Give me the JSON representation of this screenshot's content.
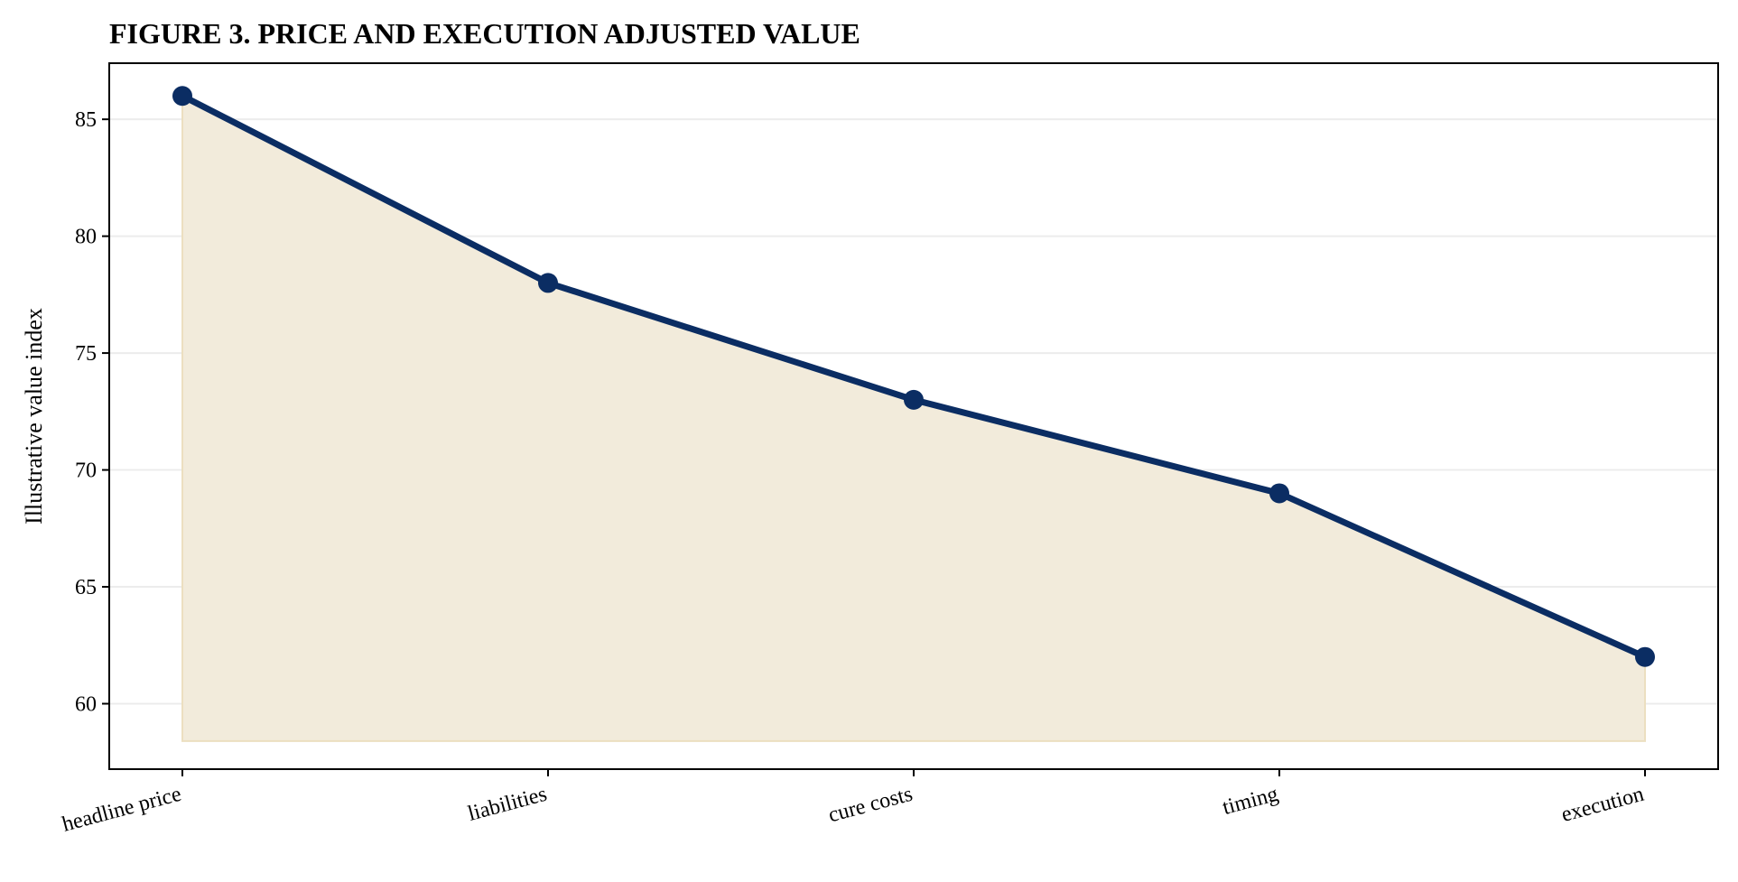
{
  "chart_data": {
    "type": "area",
    "title": "FIGURE 3. PRICE AND EXECUTION ADJUSTED VALUE",
    "xlabel": "",
    "ylabel": "Illustrative value index",
    "categories": [
      "headline price",
      "liabilities",
      "cure costs",
      "timing",
      "execution"
    ],
    "values": [
      86,
      78,
      73,
      69,
      62
    ],
    "ylim": [
      57.2,
      87.4
    ],
    "yticks": [
      60,
      65,
      70,
      75,
      80,
      85
    ],
    "area_baseline": 58.4,
    "grid": "horizontal",
    "colors": {
      "line": "#0b2d63",
      "fill": "#f2ebdb",
      "fill_edge": "#ecdfc0",
      "grid": "#ececec"
    }
  }
}
